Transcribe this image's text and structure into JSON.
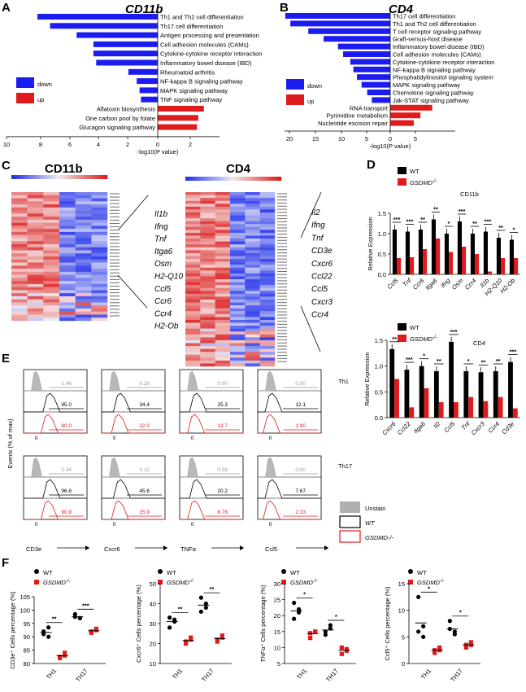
{
  "panels": {
    "A": {
      "label": "A",
      "title": "CD11b",
      "legend": {
        "down": "down",
        "up": "up"
      },
      "axis_label": "-log10(P value)",
      "ticks": [
        "10",
        "8",
        "6",
        "4",
        "2",
        "0",
        "2"
      ],
      "down_terms": [
        {
          "term": "Th1 and Th2 cell differentiation",
          "value": 8.6
        },
        {
          "term": "Th17 cell differentiation",
          "value": 7.7
        },
        {
          "term": "Antigen processing and presentation",
          "value": 5.8
        },
        {
          "term": "Cell adhesion molecules (CAMs)",
          "value": 4.6
        },
        {
          "term": "Cytokine-cytokine receptor interaction",
          "value": 4.6
        },
        {
          "term": "Inflammatory bowel disease (IBD)",
          "value": 4.4
        },
        {
          "term": "Rheumatoid arthritis",
          "value": 2.1
        },
        {
          "term": "NF-kappa B signaling pathway",
          "value": 1.5
        },
        {
          "term": "MAPK signaling pathway",
          "value": 1.3
        },
        {
          "term": "TNF signaling pathway",
          "value": 1.2
        }
      ],
      "up_terms": [
        {
          "term": "Aflatoxin biosynthesis",
          "value": 3.3
        },
        {
          "term": "One carbon pool by folate",
          "value": 2.9
        },
        {
          "term": "Glucagon signaling pathway",
          "value": 2.8
        }
      ]
    },
    "B": {
      "label": "B",
      "title": "CD4",
      "legend": {
        "down": "down",
        "up": "up"
      },
      "axis_label": "-log10(P value)",
      "ticks": [
        "20",
        "15",
        "10",
        "5",
        "0",
        "5"
      ],
      "down_terms": [
        {
          "term": "Th17 cell differentiation",
          "value": 20.5
        },
        {
          "term": "Th1 and Th2 cell differentiation",
          "value": 19.5
        },
        {
          "term": "T cell receptor signaling pathway",
          "value": 16.0
        },
        {
          "term": "Graft-versus-host disease",
          "value": 13.0
        },
        {
          "term": "Inflammatory bowel disease (IBD)",
          "value": 10.2
        },
        {
          "term": "Cell adhesion molecules (CAMs)",
          "value": 9.2
        },
        {
          "term": "Cytokine-cytokine receptor interaction",
          "value": 7.8
        },
        {
          "term": "NF-kappa B signaling pathway",
          "value": 7.2
        },
        {
          "term": "Phosphatidylinositol signaling system",
          "value": 6.5
        },
        {
          "term": "MAPK signaling pathway",
          "value": 5.6
        },
        {
          "term": "Chemokine signaling pathway",
          "value": 4.5
        },
        {
          "term": "Jak-STAT signaling pathway",
          "value": 3.6
        }
      ],
      "up_terms": [
        {
          "term": "RNA transport",
          "value": 8.2
        },
        {
          "term": "Pyrimidine metabolism",
          "value": 5.9
        },
        {
          "term": "Nucleotide excision repair",
          "value": 4.6
        }
      ]
    },
    "C": {
      "label": "C",
      "left_title": "CD11b",
      "right_title": "CD4",
      "left_genes": [
        "Il1b",
        "Ifng",
        "Tnf",
        "Itga6",
        "Osm",
        "H2-Q10",
        "Ccl5",
        "Ccr6",
        "Ccr4",
        "H2-Ob"
      ],
      "right_genes": [
        "Il2",
        "Ifng",
        "Tnf",
        "CD3e",
        "Cxcr6",
        "Ccl22",
        "Ccl5",
        "Cxcr3",
        "Ccr4"
      ]
    },
    "D": {
      "label": "D",
      "legend_wt": "WT",
      "legend_ko": "GSDMD",
      "ko_sup": "-/-",
      "ylabel": "Relative Expression",
      "charts": [
        {
          "title": "CD11b",
          "ylim": [
            0,
            1.5
          ],
          "yticks": [
            "0.0",
            "0.5",
            "1.0",
            "1.5"
          ],
          "categories": [
            "Ccl5",
            "Tnf",
            "Ccr6",
            "Itga6",
            "Ifng",
            "Osm",
            "Ccr4",
            "Il1b",
            "H2-Q10",
            "H2-Ob"
          ],
          "wt": [
            1.1,
            1.05,
            1.1,
            1.35,
            1.0,
            1.3,
            1.0,
            1.05,
            0.9,
            0.85
          ],
          "ko": [
            0.4,
            0.42,
            0.62,
            0.88,
            0.55,
            0.68,
            0.5,
            0.07,
            0.4,
            0.4
          ],
          "sig": [
            "***",
            "***",
            "**",
            "**",
            "*",
            "***",
            "**",
            "***",
            "**",
            "*"
          ]
        },
        {
          "title": "CD4",
          "ylim": [
            0,
            1.5
          ],
          "yticks": [
            "0.0",
            "0.5",
            "1.0",
            "1.5"
          ],
          "categories": [
            "Cxcr6",
            "Ccl22",
            "Itga6",
            "Il2",
            "Ccl5",
            "Tnf",
            "Cxcr3",
            "Ccr4",
            "Cd3e"
          ],
          "wt": [
            1.33,
            0.93,
            1.0,
            0.9,
            1.47,
            0.9,
            0.88,
            0.9,
            1.08
          ],
          "ko": [
            0.75,
            0.2,
            0.57,
            0.3,
            0.3,
            0.4,
            0.32,
            0.4,
            0.18
          ],
          "sig": [
            "**",
            "***",
            "*",
            "**",
            "***",
            "*",
            "**",
            "**",
            "***"
          ]
        }
      ]
    },
    "E": {
      "label": "E",
      "ylabel": "Events (% of max)",
      "markers": [
        "CD3e",
        "Cxcr6",
        "TNFα",
        "Ccl5"
      ],
      "rows": [
        {
          "name": "Th1",
          "unstain": [
            "1.46",
            "0.29",
            "0.00",
            "0.00"
          ],
          "wt": [
            "95.0",
            "34.4",
            "25.3",
            "12.1"
          ],
          "ko": [
            "80.0",
            "22.0",
            "13.7",
            "1.90"
          ]
        },
        {
          "name": "Th17",
          "unstain": [
            "2.34",
            "0.11",
            "0.08",
            "0.00"
          ],
          "wt": [
            "96.8",
            "45.6",
            "20.2",
            "7.67"
          ],
          "ko": [
            "90.9",
            "25.9",
            "8.78",
            "2.33"
          ]
        }
      ],
      "legend": {
        "unstain": "Unstain",
        "wt": "WT",
        "ko": "GSDMD-/-"
      },
      "zero_tick": "0"
    },
    "F": {
      "label": "F",
      "legend_wt": "WT",
      "legend_ko": "GSDMD",
      "ko_sup": "-/-",
      "charts": [
        {
          "ylabel": "CD3e⁺ Cells percentage (%)",
          "yticks": [
            "80",
            "85",
            "90",
            "95",
            "100",
            "105"
          ],
          "ylim": [
            80,
            105
          ],
          "groups": [
            "TH1",
            "TH17"
          ],
          "wt": [
            [
              91,
              90,
              92,
              93.5
            ],
            [
              97.5,
              97,
              98.5,
              97
            ]
          ],
          "ko": [
            [
              82,
              83,
              82.5,
              84
            ],
            [
              92,
              92.5,
              91.5,
              93
            ]
          ],
          "sig": [
            "**",
            "***"
          ]
        },
        {
          "ylabel": "Cxcr6⁺ Cells percentage (%)",
          "yticks": [
            "10",
            "20",
            "30",
            "40",
            "50"
          ],
          "ylim": [
            10,
            50
          ],
          "groups": [
            "TH1",
            "TH17"
          ],
          "wt": [
            [
              28,
              31,
              33,
              32
            ],
            [
              36,
              40,
              43,
              38
            ]
          ],
          "ko": [
            [
              21,
              22,
              20,
              23
            ],
            [
              21,
              23,
              22,
              24
            ]
          ],
          "sig": [
            "**",
            "**"
          ]
        },
        {
          "ylabel": "TNFα⁺ Cells percentage (%)",
          "yticks": [
            "5",
            "10",
            "15",
            "20",
            "25",
            "30"
          ],
          "ylim": [
            5,
            30
          ],
          "groups": [
            "TH1",
            "TH17"
          ],
          "wt": [
            [
              19,
              21,
              24,
              22
            ],
            [
              14,
              16,
              15,
              17
            ]
          ],
          "ko": [
            [
              13,
              15,
              14.5,
              15
            ],
            [
              8,
              9,
              10,
              9.5
            ]
          ],
          "sig": [
            "*",
            "*"
          ]
        },
        {
          "ylabel": "Ccl5⁺ Cells percentage (%)",
          "yticks": [
            "0",
            "5",
            "10",
            "15"
          ],
          "ylim": [
            0,
            15
          ],
          "groups": [
            "TH1",
            "TH17"
          ],
          "wt": [
            [
              12.5,
              7,
              6,
              5
            ],
            [
              8,
              6,
              6.5,
              5.5
            ]
          ],
          "ko": [
            [
              2.5,
              3,
              2,
              2.5
            ],
            [
              3.5,
              4,
              3,
              3.5
            ]
          ],
          "sig": [
            "*",
            "*"
          ]
        }
      ]
    }
  },
  "colors": {
    "down": "#1c1cf0",
    "up": "#e01b1b",
    "wt": "#000000",
    "ko": "#e01b1b",
    "unstain": "#b0b0b0"
  }
}
